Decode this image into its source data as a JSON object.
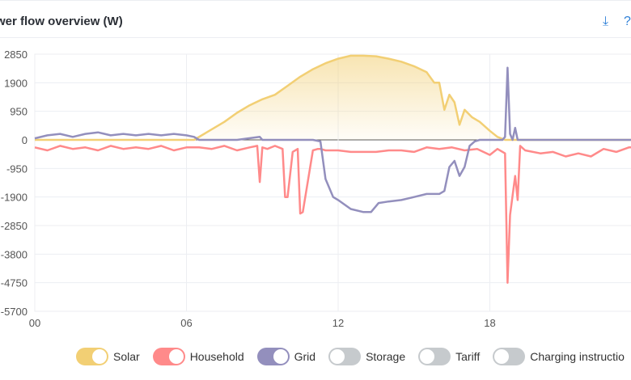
{
  "title": "wer flow overview (W)",
  "icons": {
    "download": "download-icon",
    "help": "help-icon"
  },
  "chart_data": {
    "type": "line",
    "title": "wer flow overview (W)",
    "xlabel": "",
    "ylabel": "",
    "xlim": [
      0,
      24
    ],
    "ylim": [
      -5700,
      2850
    ],
    "x_ticks": [
      "00",
      "06",
      "12",
      "18"
    ],
    "y_ticks": [
      "2850",
      "1900",
      "950",
      "0",
      "-950",
      "-1900",
      "-2850",
      "-3800",
      "-4750",
      "-5700"
    ],
    "grid": true,
    "legend_position": "bottom",
    "series": [
      {
        "name": "Solar",
        "color": "#f2cf74",
        "fill": true,
        "enabled": true,
        "x": [
          0,
          6.3,
          6.8,
          7.5,
          8,
          8.5,
          9,
          9.5,
          10,
          10.5,
          11,
          11.5,
          12,
          12.5,
          13,
          13.5,
          14,
          14.5,
          15,
          15.5,
          15.8,
          16,
          16.2,
          16.4,
          16.6,
          16.8,
          17,
          17.3,
          17.6,
          18,
          18.3,
          18.6,
          19,
          24
        ],
        "y": [
          0,
          0,
          250,
          600,
          900,
          1150,
          1350,
          1500,
          1800,
          2100,
          2350,
          2550,
          2700,
          2800,
          2800,
          2780,
          2700,
          2600,
          2450,
          2250,
          1900,
          1900,
          1000,
          1500,
          1250,
          500,
          1000,
          750,
          600,
          300,
          100,
          0,
          0,
          0
        ]
      },
      {
        "name": "Household",
        "color": "#ff8a8a",
        "enabled": true,
        "x": [
          0,
          0.5,
          1,
          1.5,
          2,
          2.5,
          3,
          3.5,
          4,
          4.5,
          5,
          5.5,
          6,
          6.5,
          7,
          7.5,
          8,
          8.5,
          8.8,
          8.9,
          9.0,
          9.2,
          9.5,
          9.8,
          9.9,
          10.0,
          10.2,
          10.4,
          10.5,
          10.6,
          11,
          11.2,
          11.3,
          11.5,
          12,
          12.5,
          13,
          13.5,
          14,
          14.5,
          15,
          15.5,
          16,
          16.5,
          17,
          17.5,
          18,
          18.3,
          18.6,
          18.7,
          18.8,
          19.0,
          19.1,
          19.2,
          19.4,
          20,
          20.5,
          21,
          21.5,
          22,
          22.5,
          23,
          23.5,
          24
        ],
        "y": [
          -250,
          -350,
          -200,
          -300,
          -250,
          -350,
          -200,
          -300,
          -250,
          -300,
          -200,
          -350,
          -250,
          -250,
          -300,
          -200,
          -350,
          -250,
          -200,
          -1400,
          -250,
          -300,
          -200,
          -300,
          -1900,
          -1900,
          -400,
          -300,
          -2450,
          -2400,
          -350,
          -300,
          -300,
          -350,
          -350,
          -400,
          -400,
          -400,
          -350,
          -350,
          -400,
          -250,
          -300,
          -250,
          -350,
          -300,
          -500,
          -300,
          -450,
          -4750,
          -2500,
          -1200,
          -2000,
          -200,
          -350,
          -450,
          -400,
          -550,
          -450,
          -550,
          -300,
          -400,
          -250,
          -250
        ]
      },
      {
        "name": "Grid",
        "color": "#938fbd",
        "enabled": true,
        "x": [
          0,
          0.5,
          1,
          1.5,
          2,
          2.5,
          3,
          3.5,
          4,
          4.5,
          5,
          5.5,
          6,
          6.3,
          6.5,
          7,
          8,
          8.9,
          9,
          10,
          11,
          11.3,
          11.5,
          11.8,
          12,
          12.5,
          13,
          13.3,
          13.6,
          14,
          14.5,
          15,
          15.5,
          16,
          16.2,
          16.4,
          16.6,
          16.8,
          17,
          17.2,
          17.4,
          17.6,
          18,
          18.5,
          18.6,
          18.7,
          18.8,
          18.9,
          19.0,
          19.1,
          19.2,
          20,
          21,
          22,
          23,
          24
        ],
        "y": [
          50,
          150,
          200,
          100,
          200,
          250,
          150,
          200,
          150,
          200,
          150,
          200,
          150,
          100,
          0,
          0,
          0,
          100,
          0,
          0,
          0,
          -50,
          -1300,
          -1900,
          -2000,
          -2300,
          -2400,
          -2400,
          -2100,
          -2050,
          -2000,
          -1900,
          -1800,
          -1800,
          -1700,
          -900,
          -700,
          -1200,
          -900,
          -200,
          -50,
          0,
          0,
          0,
          100,
          2400,
          200,
          0,
          400,
          0,
          0,
          0,
          0,
          0,
          0,
          0
        ]
      },
      {
        "name": "Storage",
        "color": "#c6cacd",
        "enabled": false,
        "x": [],
        "y": []
      },
      {
        "name": "Tariff",
        "color": "#c6cacd",
        "enabled": false,
        "x": [],
        "y": []
      },
      {
        "name": "Charging instructio",
        "color": "#c6cacd",
        "enabled": false,
        "x": [],
        "y": []
      }
    ]
  }
}
